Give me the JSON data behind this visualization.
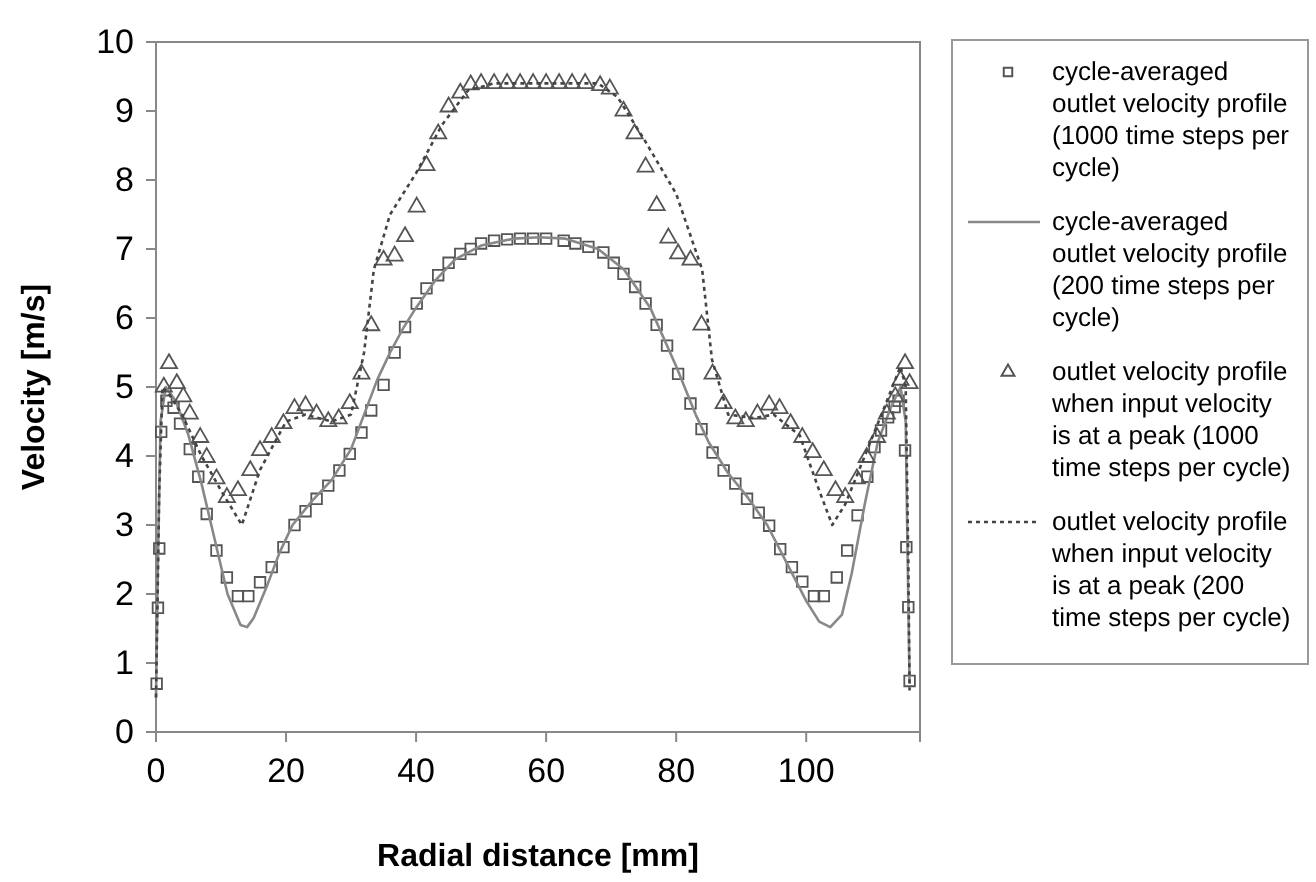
{
  "chart_data": {
    "type": "line",
    "xlabel": "Radial distance [mm]",
    "ylabel": "Velocity [m/s]",
    "xlim": [
      0,
      117.5
    ],
    "ylim": [
      0,
      10
    ],
    "xticks": [
      0,
      20,
      40,
      60,
      80,
      100
    ],
    "yticks": [
      0,
      1,
      2,
      3,
      4,
      5,
      6,
      7,
      8,
      9,
      10
    ],
    "grid": false,
    "legend": "right",
    "series": [
      {
        "name": "cycle-averaged outlet velocity profile (1000 time steps per cycle)",
        "type": "scatter",
        "marker": "square",
        "color": "#555555",
        "x": [
          0.1,
          0.3,
          0.5,
          0.8,
          1.6,
          2.7,
          3.7,
          5.2,
          6.5,
          7.8,
          9.3,
          10.9,
          12.6,
          14.2,
          16,
          17.8,
          19.6,
          21.3,
          23,
          24.7,
          26.5,
          28.2,
          29.8,
          31.6,
          33.1,
          35,
          36.7,
          38.3,
          40.1,
          41.6,
          43.4,
          45,
          46.8,
          48.4,
          50,
          52,
          54,
          56,
          58,
          60,
          62.7,
          64.5,
          66.5,
          68.8,
          70.4,
          71.9,
          73.7,
          75.3,
          77,
          78.6,
          80.3,
          82.2,
          83.9,
          85.6,
          87.3,
          89.1,
          90.9,
          92.7,
          94.3,
          96,
          97.8,
          99.4,
          101.2,
          102.7,
          104.7,
          106.3,
          107.9,
          109.4,
          110.5,
          111.5,
          112.6,
          113.6,
          114.2,
          115.2,
          115.4,
          115.7,
          115.9
        ],
        "values": [
          0.7,
          1.8,
          2.66,
          4.35,
          4.8,
          4.7,
          4.47,
          4.1,
          3.7,
          3.16,
          2.63,
          2.24,
          1.97,
          1.97,
          2.17,
          2.39,
          2.68,
          3.0,
          3.2,
          3.38,
          3.57,
          3.79,
          4.03,
          4.34,
          4.66,
          5.03,
          5.5,
          5.87,
          6.21,
          6.43,
          6.62,
          6.8,
          6.93,
          7.0,
          7.08,
          7.12,
          7.14,
          7.15,
          7.15,
          7.15,
          7.12,
          7.08,
          7.03,
          6.95,
          6.8,
          6.64,
          6.45,
          6.21,
          5.9,
          5.6,
          5.19,
          4.76,
          4.39,
          4.05,
          3.79,
          3.6,
          3.38,
          3.18,
          2.99,
          2.65,
          2.39,
          2.18,
          1.97,
          1.97,
          2.24,
          2.63,
          3.14,
          3.7,
          4.13,
          4.37,
          4.56,
          4.71,
          4.8,
          4.08,
          2.68,
          1.81,
          0.74
        ]
      },
      {
        "name": "cycle-averaged outlet velocity profile (200 time steps per cycle)",
        "type": "line",
        "line_style": "solid",
        "color": "#888888",
        "x": [
          0,
          0.3,
          0.7,
          1.5,
          3,
          5,
          7,
          9,
          11,
          13,
          14,
          15,
          17,
          19,
          21,
          24,
          27,
          30,
          32,
          34,
          36,
          38,
          40,
          43,
          46,
          50,
          55,
          59,
          63,
          68,
          72,
          76,
          80,
          83,
          85,
          88,
          91,
          94,
          97,
          100,
          102,
          103.7,
          105.5,
          107,
          109,
          111,
          113,
          114.5,
          115.3,
          115.6,
          115.9
        ],
        "values": [
          0.5,
          2.5,
          4.5,
          5.0,
          4.8,
          4.3,
          3.6,
          2.8,
          2.0,
          1.55,
          1.52,
          1.65,
          2.1,
          2.6,
          3.0,
          3.35,
          3.65,
          4.1,
          4.6,
          5.1,
          5.5,
          5.85,
          6.15,
          6.55,
          6.85,
          7.05,
          7.15,
          7.17,
          7.15,
          7.0,
          6.7,
          6.15,
          5.3,
          4.6,
          4.2,
          3.75,
          3.4,
          3.0,
          2.45,
          1.9,
          1.6,
          1.52,
          1.7,
          2.3,
          3.3,
          4.2,
          4.7,
          5.0,
          4.5,
          2.5,
          0.7
        ]
      },
      {
        "name": "outlet velocity profile when input velocity is at a peak (1000 time steps per cycle)",
        "type": "scatter",
        "marker": "triangle",
        "color": "#555555",
        "x": [
          1.2,
          2,
          3.2,
          4.2,
          5.2,
          6.8,
          7.8,
          9.3,
          10.9,
          12.6,
          14.5,
          16,
          17.8,
          19.6,
          21.3,
          23,
          24.7,
          26.5,
          28.1,
          29.8,
          31.6,
          33.1,
          35,
          36.7,
          38.3,
          40.1,
          41.6,
          43.4,
          45,
          46.8,
          48.4,
          50,
          52,
          54,
          56,
          58,
          60,
          62,
          64,
          66,
          68.3,
          69.8,
          71.9,
          73.6,
          75.3,
          77,
          78.8,
          80.3,
          82.2,
          83.9,
          85.6,
          87.3,
          89.1,
          90.7,
          92.5,
          94.3,
          95.9,
          97.6,
          99.4,
          101,
          102.7,
          104.5,
          106,
          107.8,
          109.3,
          110.9,
          112.4,
          113.7,
          114.5,
          115.2,
          115.9
        ],
        "values": [
          5.0,
          5.34,
          5.05,
          4.86,
          4.61,
          4.27,
          3.98,
          3.67,
          3.4,
          3.5,
          3.79,
          4.08,
          4.27,
          4.47,
          4.69,
          4.73,
          4.61,
          4.5,
          4.54,
          4.76,
          5.19,
          5.89,
          6.84,
          6.9,
          7.18,
          7.61,
          8.21,
          8.67,
          9.06,
          9.26,
          9.38,
          9.4,
          9.4,
          9.4,
          9.4,
          9.4,
          9.4,
          9.4,
          9.4,
          9.4,
          9.37,
          9.32,
          9.0,
          8.67,
          8.19,
          7.63,
          7.16,
          6.93,
          6.84,
          5.9,
          5.19,
          4.76,
          4.54,
          4.5,
          4.61,
          4.74,
          4.69,
          4.47,
          4.27,
          4.05,
          3.79,
          3.5,
          3.4,
          3.67,
          3.98,
          4.27,
          4.61,
          4.86,
          5.1,
          5.34,
          5.05
        ]
      },
      {
        "name": "outlet velocity profile when input velocity is at a peak (200 time steps per cycle)",
        "type": "line",
        "line_style": "dotted",
        "color": "#444444",
        "x": [
          0,
          0.5,
          1,
          2,
          4,
          7,
          10,
          13.2,
          16,
          20,
          23,
          27,
          30,
          32,
          33.5,
          36,
          40,
          44,
          48,
          52,
          60,
          68,
          71,
          75,
          80,
          84,
          85.5,
          88,
          92,
          95,
          99,
          102,
          104,
          106,
          109,
          112,
          114.5,
          115.3,
          115.7,
          115.9
        ],
        "values": [
          0.5,
          3.5,
          5.0,
          4.9,
          4.6,
          4.0,
          3.5,
          3.0,
          3.8,
          4.5,
          4.6,
          4.5,
          4.6,
          5.5,
          6.7,
          7.5,
          8.1,
          8.8,
          9.3,
          9.4,
          9.4,
          9.4,
          9.2,
          8.6,
          7.8,
          6.7,
          5.4,
          4.6,
          4.55,
          4.6,
          4.3,
          3.5,
          3.0,
          3.3,
          4.0,
          4.7,
          5.3,
          5.0,
          2.5,
          0.6
        ]
      }
    ]
  }
}
